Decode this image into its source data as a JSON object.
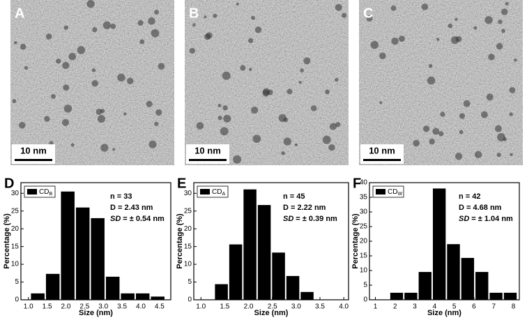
{
  "panels": [
    {
      "label": "A",
      "scale_bar": "10 nm"
    },
    {
      "label": "B",
      "scale_bar": "10 nm"
    },
    {
      "label": "C",
      "scale_bar": "10 nm"
    }
  ],
  "chart_data": [
    {
      "type": "histogram",
      "panel_label": "D",
      "x_label": "Size (nm)",
      "y_label": "Percentage (%)",
      "legend": {
        "text": "CD",
        "subscript": "B"
      },
      "annotations": {
        "n": "n = 33",
        "d": "D = 2.43 nm",
        "sd_label": "SD",
        "sd_value": "= ± 0.54 nm"
      },
      "color": "#000000",
      "bins": [
        1.05,
        1.45,
        1.85,
        2.25,
        2.65,
        3.05,
        3.45,
        3.85,
        4.25,
        4.65
      ],
      "values": [
        1.8,
        7.3,
        30.5,
        26,
        23,
        6.5,
        1.8,
        1.8,
        0.9
      ],
      "xlim": [
        0.8,
        4.8
      ],
      "ylim": [
        0,
        33
      ],
      "xticks": [
        {
          "value": 1,
          "label": "1.0"
        },
        1.5,
        {
          "value": 2,
          "label": "2.0"
        },
        2.5,
        {
          "value": 3,
          "label": "3.0"
        },
        3.5,
        {
          "value": 4,
          "label": "4.0"
        },
        4.5
      ],
      "yticks": [
        0,
        5,
        10,
        15,
        20,
        25,
        30
      ]
    },
    {
      "type": "histogram",
      "panel_label": "E",
      "x_label": "Size (nm)",
      "y_label": "Percentage (%)",
      "legend": {
        "text": "CD",
        "subscript": "A"
      },
      "annotations": {
        "n": "n = 45",
        "d": "D = 2.22 nm",
        "sd_label": "SD",
        "sd_value": "= ± 0.39 nm"
      },
      "color": "#000000",
      "bins": [
        1.28,
        1.58,
        1.88,
        2.18,
        2.48,
        2.78,
        3.08,
        3.38
      ],
      "values": [
        4.4,
        15.6,
        31.1,
        26.7,
        13.3,
        6.7,
        2.2
      ],
      "xlim": [
        0.85,
        4.1
      ],
      "ylim": [
        0,
        33
      ],
      "xticks": [
        {
          "value": 1,
          "label": "1.0"
        },
        1.5,
        {
          "value": 2,
          "label": "2.0"
        },
        2.5,
        {
          "value": 3,
          "label": "3.0"
        },
        3.5,
        {
          "value": 4,
          "label": "4.0"
        }
      ],
      "yticks": [
        0,
        5,
        10,
        15,
        20,
        25,
        30
      ]
    },
    {
      "type": "histogram",
      "panel_label": "F",
      "x_label": "Size (nm)",
      "y_label": "Percentage (%)",
      "legend": {
        "text": "CD",
        "subscript": "W"
      },
      "annotations": {
        "n": "n = 42",
        "d": "D = 4.68 nm",
        "sd_label": "SD",
        "sd_value": "= ± 1.04 nm"
      },
      "color": "#000000",
      "bins": [
        1.72,
        2.44,
        3.16,
        3.88,
        4.6,
        5.32,
        6.04,
        6.76,
        7.48,
        8.2
      ],
      "values": [
        2.4,
        2.4,
        9.5,
        38,
        19,
        14.3,
        9.5,
        2.4,
        2.4
      ],
      "xlim": [
        0.7,
        8.3
      ],
      "ylim": [
        0,
        40
      ],
      "xticks": [
        1,
        2,
        3,
        4,
        5,
        6,
        7,
        8
      ],
      "yticks": [
        0,
        5,
        10,
        15,
        20,
        25,
        30,
        35,
        40
      ]
    }
  ]
}
